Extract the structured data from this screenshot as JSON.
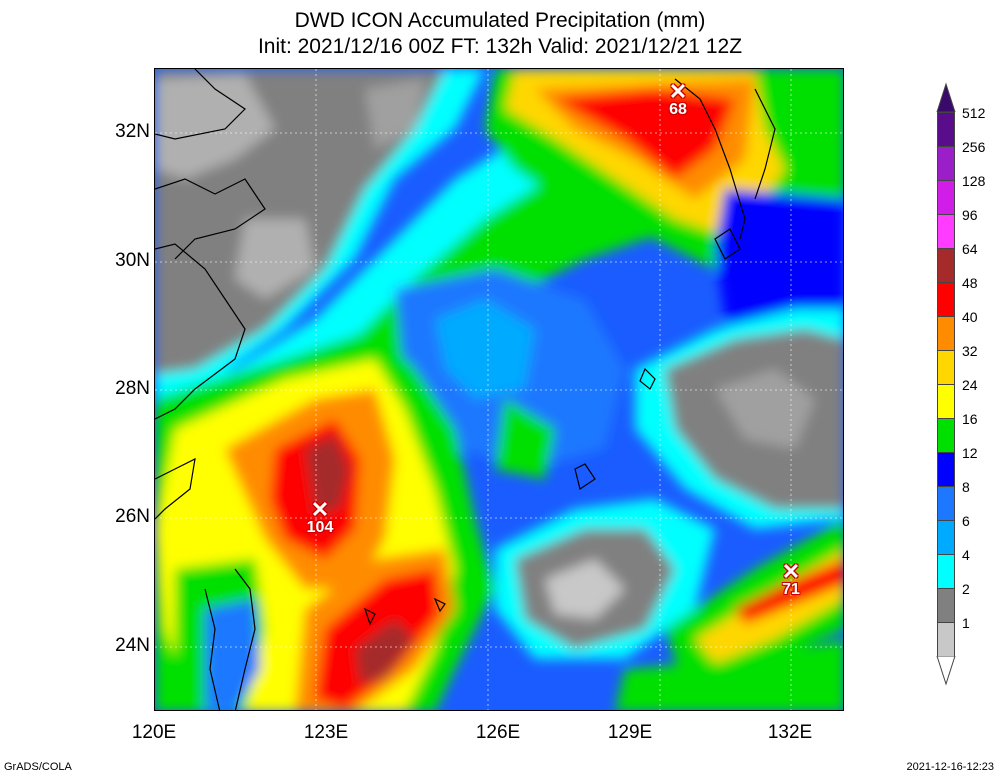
{
  "title_line1": "DWD ICON Accumulated Precipitation (mm)",
  "title_line2": "Init: 2021/12/16 00Z  FT: 132h  Valid: 2021/12/21 12Z",
  "lat_labels": [
    "32N",
    "30N",
    "28N",
    "26N",
    "24N"
  ],
  "lon_labels": [
    "120E",
    "123E",
    "126E",
    "129E",
    "132E"
  ],
  "maxima": [
    {
      "value": "68",
      "lon": 130.0,
      "lat": 32.6
    },
    {
      "value": "104",
      "lon": 123.1,
      "lat": 26.1
    },
    {
      "value": "71",
      "lon": 132.0,
      "lat": 25.1
    }
  ],
  "legend": {
    "levels": [
      "512",
      "256",
      "128",
      "96",
      "64",
      "48",
      "40",
      "32",
      "24",
      "16",
      "12",
      "8",
      "6",
      "4",
      "2",
      "1"
    ],
    "colors": [
      "#5a0d8a",
      "#9b1fc9",
      "#d01ee8",
      "#ff3cff",
      "#a52a2a",
      "#ff0000",
      "#ff8c00",
      "#ffd700",
      "#ffff00",
      "#00e000",
      "#0000ff",
      "#1e78ff",
      "#00aaff",
      "#00ffff",
      "#808080",
      "#c8c8c8"
    ]
  },
  "footer_left": "GrADS/COLA",
  "footer_right": "2021-12-16-12:23"
}
